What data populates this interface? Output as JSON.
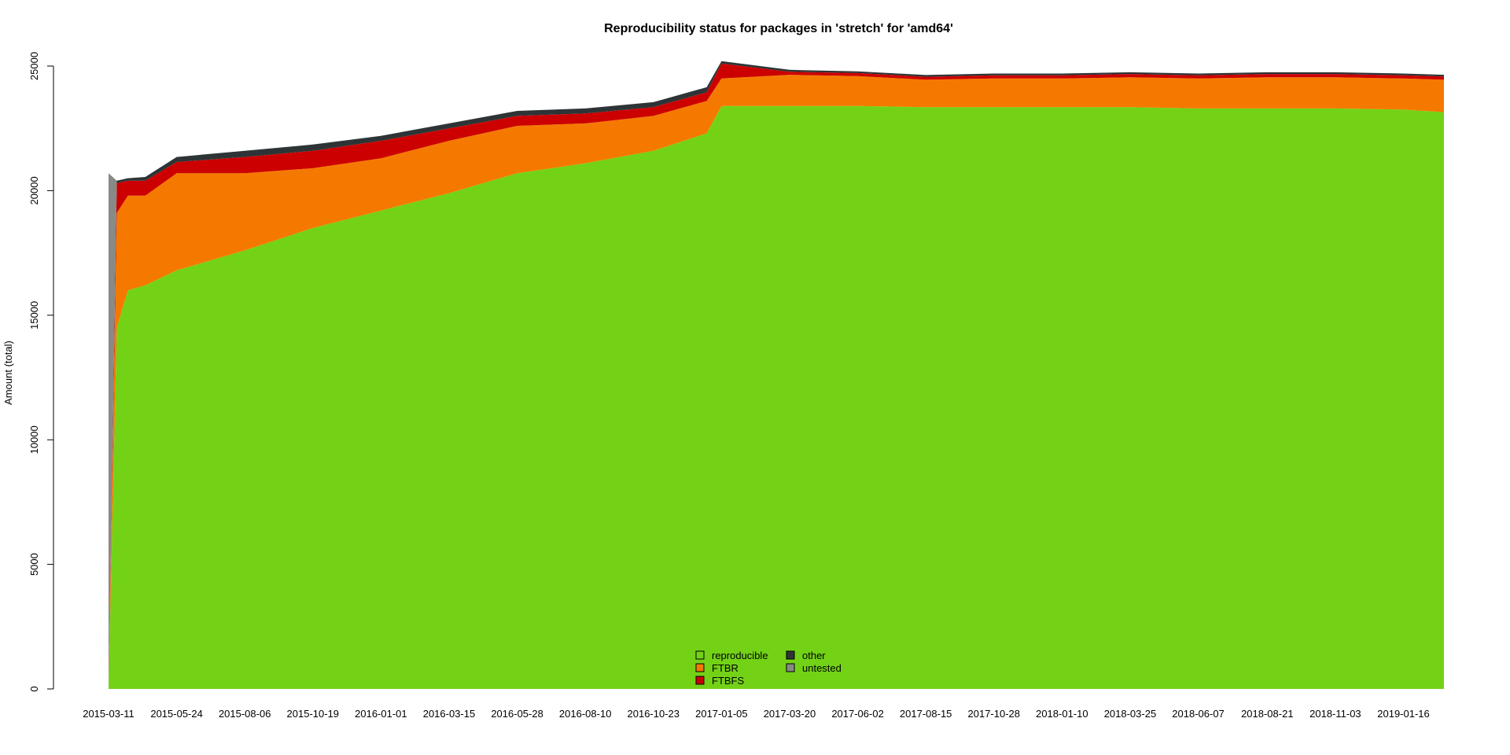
{
  "chart_data": {
    "type": "area",
    "stacked": true,
    "title": "Reproducibility status for packages in 'stretch' for 'amd64'",
    "xlabel": "",
    "ylabel": "Amount (total)",
    "ylim": [
      0,
      25000
    ],
    "yticks": [
      0,
      5000,
      10000,
      15000,
      20000,
      25000
    ],
    "xlim": [
      "2015-03-11",
      "2019-03-01"
    ],
    "xticks": [
      "2015-03-11",
      "2015-05-24",
      "2015-08-06",
      "2015-10-19",
      "2016-01-01",
      "2016-03-15",
      "2016-05-28",
      "2016-08-10",
      "2016-10-23",
      "2017-01-05",
      "2017-03-20",
      "2017-06-02",
      "2017-08-15",
      "2017-10-28",
      "2018-01-10",
      "2018-03-25",
      "2018-06-07",
      "2018-08-21",
      "2018-11-03",
      "2019-01-16"
    ],
    "grid": false,
    "legend_position": "bottom-center",
    "x": [
      "2015-03-11",
      "2015-03-20",
      "2015-04-01",
      "2015-04-20",
      "2015-05-24",
      "2015-08-06",
      "2015-10-19",
      "2016-01-01",
      "2016-03-15",
      "2016-05-28",
      "2016-08-10",
      "2016-10-23",
      "2016-12-20",
      "2017-01-05",
      "2017-03-20",
      "2017-06-02",
      "2017-08-15",
      "2017-10-28",
      "2018-01-10",
      "2018-03-25",
      "2018-06-07",
      "2018-08-21",
      "2018-11-03",
      "2019-01-16",
      "2019-03-01"
    ],
    "series": [
      {
        "name": "reproducible",
        "color": "#73d216",
        "values": [
          0,
          14500,
          16000,
          16200,
          16800,
          17600,
          18500,
          19200,
          19900,
          20700,
          21100,
          21600,
          22300,
          23400,
          23400,
          23400,
          23350,
          23350,
          23350,
          23350,
          23300,
          23300,
          23300,
          23250,
          23150
        ]
      },
      {
        "name": "FTBR",
        "color": "#f57900",
        "values": [
          0,
          4600,
          3800,
          3600,
          3900,
          3100,
          2400,
          2100,
          2100,
          1900,
          1600,
          1400,
          1300,
          1100,
          1250,
          1200,
          1100,
          1150,
          1150,
          1200,
          1200,
          1250,
          1250,
          1250,
          1300
        ]
      },
      {
        "name": "FTBFS",
        "color": "#cc0000",
        "values": [
          0,
          1200,
          600,
          600,
          450,
          650,
          700,
          700,
          500,
          400,
          400,
          350,
          350,
          600,
          120,
          120,
          120,
          130,
          130,
          130,
          130,
          130,
          130,
          130,
          130
        ]
      },
      {
        "name": "other",
        "color": "#2e3436",
        "values": [
          0,
          100,
          100,
          150,
          200,
          250,
          250,
          200,
          200,
          200,
          200,
          200,
          200,
          100,
          80,
          70,
          70,
          70,
          70,
          70,
          70,
          70,
          70,
          70,
          70
        ]
      },
      {
        "name": "untested",
        "color": "#888a85",
        "values": [
          20700,
          0,
          0,
          0,
          0,
          0,
          0,
          0,
          0,
          0,
          0,
          0,
          0,
          0,
          0,
          0,
          0,
          0,
          0,
          0,
          0,
          0,
          0,
          0,
          0
        ]
      }
    ]
  }
}
